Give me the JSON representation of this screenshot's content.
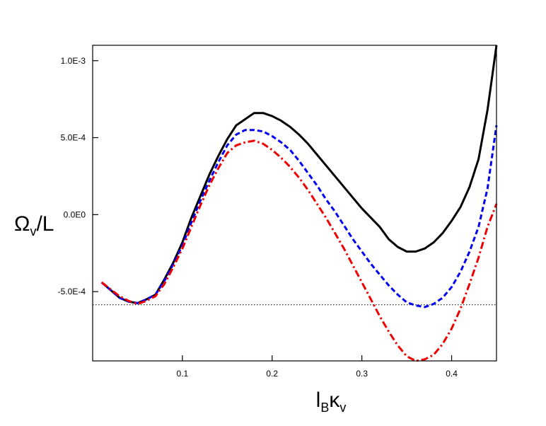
{
  "chart_data": {
    "type": "line",
    "xlabel": "l_B κ_v",
    "ylabel": "Ω_v/L",
    "xlim": [
      0.0,
      0.45
    ],
    "ylim": [
      -0.00095,
      0.0011
    ],
    "xticks": [
      {
        "value": 0.1,
        "label": "0.1"
      },
      {
        "value": 0.2,
        "label": "0.2"
      },
      {
        "value": 0.3,
        "label": "0.3"
      },
      {
        "value": 0.4,
        "label": "0.4"
      }
    ],
    "yticks": [
      {
        "value": 0.001,
        "label": "1.0E-3"
      },
      {
        "value": 0.0005,
        "label": "5.0E-4"
      },
      {
        "value": 0.0,
        "label": "0.0E0"
      },
      {
        "value": -0.0005,
        "label": "-5.0E-4"
      }
    ],
    "reference_line": {
      "y": -0.000585,
      "style": "dotted",
      "color": "#333333"
    },
    "series": [
      {
        "style": "solid",
        "color": "#000000",
        "x": [
          0.01,
          0.02,
          0.03,
          0.04,
          0.05,
          0.06,
          0.07,
          0.08,
          0.09,
          0.1,
          0.11,
          0.12,
          0.13,
          0.14,
          0.15,
          0.16,
          0.17,
          0.18,
          0.19,
          0.2,
          0.21,
          0.22,
          0.23,
          0.24,
          0.25,
          0.26,
          0.27,
          0.28,
          0.29,
          0.3,
          0.31,
          0.32,
          0.33,
          0.34,
          0.35,
          0.36,
          0.37,
          0.38,
          0.39,
          0.4,
          0.41,
          0.42,
          0.43,
          0.44,
          0.45
        ],
        "y": [
          -0.00044,
          -0.00049,
          -0.00054,
          -0.000565,
          -0.000575,
          -0.00055,
          -0.00052,
          -0.00042,
          -0.00031,
          -0.00018,
          -2e-05,
          0.00012,
          0.00026,
          0.00038,
          0.00049,
          0.00058,
          0.00062,
          0.00066,
          0.00066,
          0.00064,
          0.00061,
          0.00057,
          0.00052,
          0.00046,
          0.00039,
          0.00032,
          0.00025,
          0.00018,
          0.00011,
          4e-05,
          -2e-05,
          -8e-05,
          -0.00016,
          -0.00021,
          -0.00024,
          -0.00024,
          -0.00022,
          -0.00018,
          -0.00012,
          -4e-05,
          5e-05,
          0.00018,
          0.00036,
          0.00068,
          0.0011
        ]
      },
      {
        "style": "dashed",
        "color": "#0000ee",
        "x": [
          0.01,
          0.02,
          0.03,
          0.04,
          0.05,
          0.06,
          0.07,
          0.08,
          0.09,
          0.1,
          0.11,
          0.12,
          0.13,
          0.14,
          0.15,
          0.16,
          0.17,
          0.18,
          0.19,
          0.2,
          0.21,
          0.22,
          0.23,
          0.24,
          0.25,
          0.26,
          0.27,
          0.28,
          0.29,
          0.3,
          0.31,
          0.32,
          0.33,
          0.34,
          0.35,
          0.36,
          0.37,
          0.38,
          0.39,
          0.4,
          0.41,
          0.42,
          0.43,
          0.44,
          0.45
        ],
        "y": [
          -0.00044,
          -0.00049,
          -0.00054,
          -0.000565,
          -0.000575,
          -0.00055,
          -0.00052,
          -0.00043,
          -0.00032,
          -0.0002,
          -5e-05,
          9e-05,
          0.00022,
          0.00034,
          0.00045,
          0.00052,
          0.00055,
          0.00055,
          0.00054,
          0.00051,
          0.00047,
          0.00042,
          0.00035,
          0.00027,
          0.00019,
          0.0001,
          2e-05,
          -7e-05,
          -0.00016,
          -0.00024,
          -0.00032,
          -0.00039,
          -0.00046,
          -0.00052,
          -0.00057,
          -0.00059,
          -0.0006,
          -0.00058,
          -0.00054,
          -0.00047,
          -0.00037,
          -0.00024,
          -8e-05,
          0.00017,
          0.00058
        ]
      },
      {
        "style": "dash-dot",
        "color": "#ee0000",
        "x": [
          0.01,
          0.02,
          0.03,
          0.04,
          0.05,
          0.06,
          0.07,
          0.08,
          0.09,
          0.1,
          0.11,
          0.12,
          0.13,
          0.14,
          0.15,
          0.16,
          0.17,
          0.18,
          0.19,
          0.2,
          0.21,
          0.22,
          0.23,
          0.24,
          0.25,
          0.26,
          0.27,
          0.28,
          0.29,
          0.3,
          0.31,
          0.32,
          0.33,
          0.34,
          0.35,
          0.36,
          0.37,
          0.38,
          0.39,
          0.4,
          0.41,
          0.42,
          0.43,
          0.44,
          0.45
        ],
        "y": [
          -0.00044,
          -0.000485,
          -0.00053,
          -0.00056,
          -0.00058,
          -0.00056,
          -0.00053,
          -0.00045,
          -0.00034,
          -0.00022,
          -8e-05,
          6e-05,
          0.00019,
          0.0003,
          0.0004,
          0.00045,
          0.00047,
          0.00048,
          0.00046,
          0.00042,
          0.00037,
          0.00031,
          0.00024,
          0.00016,
          7e-05,
          -2e-05,
          -0.00012,
          -0.00022,
          -0.00033,
          -0.00044,
          -0.00055,
          -0.00066,
          -0.00076,
          -0.00085,
          -0.00092,
          -0.00095,
          -0.00094,
          -0.00091,
          -0.00084,
          -0.00074,
          -0.00061,
          -0.00045,
          -0.00028,
          -8e-05,
          7e-05
        ]
      }
    ]
  }
}
